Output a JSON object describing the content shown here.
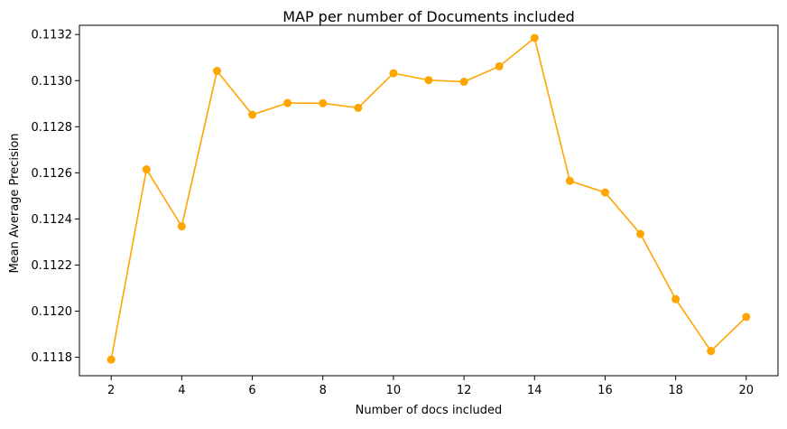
{
  "chart_data": {
    "type": "line",
    "title": "MAP per number of Documents included",
    "xlabel": "Number of docs included",
    "ylabel": "Mean Average Precision",
    "x": [
      2,
      3,
      4,
      5,
      6,
      7,
      8,
      9,
      10,
      11,
      12,
      13,
      14,
      15,
      16,
      17,
      18,
      19,
      20
    ],
    "series": [
      {
        "values": [
          0.11179,
          0.112615,
          0.112368,
          0.113042,
          0.112852,
          0.112903,
          0.112902,
          0.112882,
          0.113032,
          0.113002,
          0.112995,
          0.113062,
          0.113185,
          0.112565,
          0.112515,
          0.112335,
          0.112052,
          0.111827,
          0.111975
        ],
        "color": "#FFA500",
        "marker": "circle"
      }
    ],
    "xlim": [
      1.1,
      20.9
    ],
    "ylim": [
      0.11172,
      0.11324
    ],
    "xticks": [
      2,
      4,
      6,
      8,
      10,
      12,
      14,
      16,
      18,
      20
    ],
    "yticks": [
      0.1118,
      0.112,
      0.1122,
      0.1124,
      0.1126,
      0.1128,
      0.113,
      0.1132
    ],
    "ytick_labels": [
      "0.1118",
      "0.1120",
      "0.1122",
      "0.1124",
      "0.1126",
      "0.1128",
      "0.1130",
      "0.1132"
    ],
    "grid": false,
    "legend": "none"
  }
}
